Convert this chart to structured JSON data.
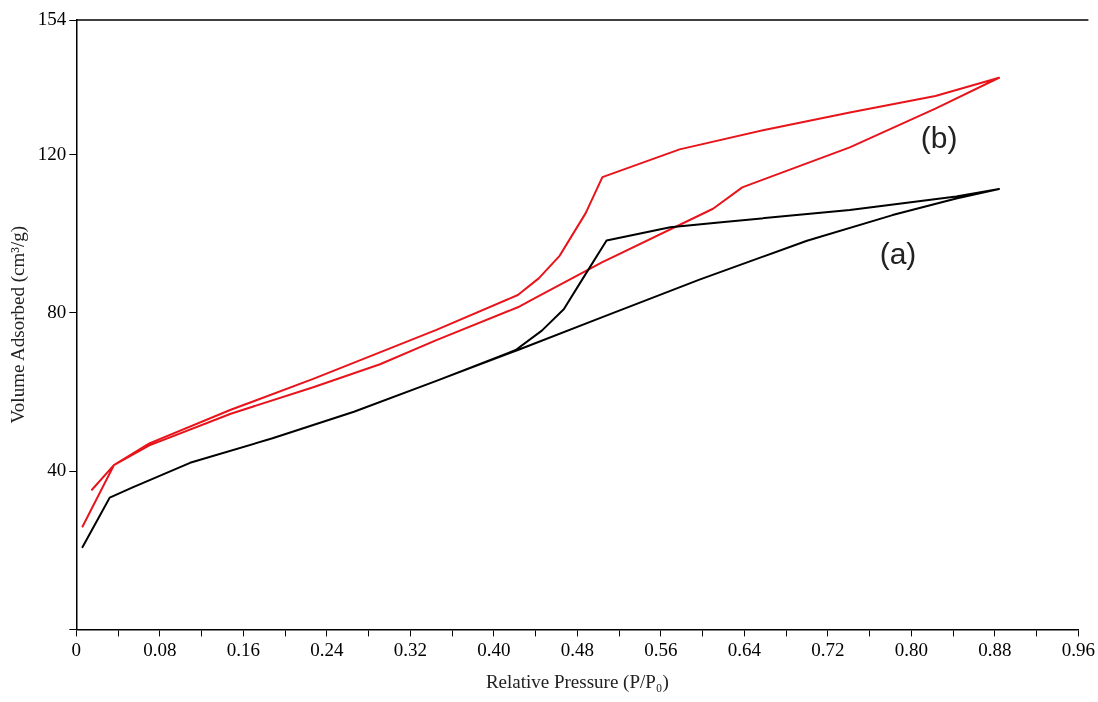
{
  "chart_data": {
    "type": "line",
    "xlabel": "Relative Pressure (P/P₀)",
    "ylabel": "Volume Adsorbed (cm³/g)",
    "xlim": [
      0,
      0.96
    ],
    "ylim": [
      0,
      154
    ],
    "xticks": [
      0,
      {
        "value": 0.04,
        "label": null
      },
      0.08,
      {
        "value": 0.12,
        "label": null
      },
      0.16,
      {
        "value": 0.2,
        "label": null
      },
      0.24,
      {
        "value": 0.28,
        "label": null
      },
      0.32,
      {
        "value": 0.36,
        "label": null
      },
      {
        "value": 0.4,
        "label": "0.40"
      },
      {
        "value": 0.44,
        "label": null
      },
      0.48,
      {
        "value": 0.52,
        "label": null
      },
      0.56,
      {
        "value": 0.6,
        "label": null
      },
      0.64,
      {
        "value": 0.68,
        "label": null
      },
      0.72,
      {
        "value": 0.76,
        "label": null
      },
      {
        "value": 0.8,
        "label": "0.80"
      },
      {
        "value": 0.84,
        "label": null
      },
      0.88,
      {
        "value": 0.92,
        "label": null
      },
      0.96
    ],
    "yticks": [
      {
        "value": 0,
        "label": null
      },
      40,
      80,
      120,
      154
    ],
    "grid": false,
    "legend": false,
    "marker": "none",
    "line_style": "solid",
    "series": [
      {
        "name": "(a)",
        "color": "#000000",
        "x": [
          0.006,
          0.032,
          0.054,
          0.109,
          0.188,
          0.266,
          0.345,
          0.423,
          0.504,
          0.597,
          0.7,
          0.782,
          0.843,
          0.884,
          0.843,
          0.741,
          0.618,
          0.569,
          0.508,
          0.487,
          0.467,
          0.446,
          0.421,
          0.345,
          0.266,
          0.188,
          0.109,
          0.054,
          0.032
        ],
        "values": [
          20.8,
          33.3,
          35.9,
          42.1,
          48.3,
          55,
          62.8,
          70.6,
          78.9,
          88.4,
          98.2,
          104.7,
          108.9,
          111.3,
          109.4,
          106,
          102.9,
          101.6,
          98.3,
          89.4,
          80.9,
          75.5,
          70.6,
          62.8,
          55,
          48.3,
          42.1,
          35.9,
          33.3
        ]
      },
      {
        "name": "(b)",
        "color": "#e8141b",
        "x": [
          0.006,
          0.036,
          0.07,
          0.148,
          0.227,
          0.291,
          0.345,
          0.423,
          0.438,
          0.504,
          0.61,
          0.638,
          0.741,
          0.823,
          0.884,
          0.823,
          0.741,
          0.659,
          0.578,
          0.504,
          0.488,
          0.463,
          0.443,
          0.423,
          0.345,
          0.227,
          0.148,
          0.07,
          0.036,
          0.015
        ],
        "values": [
          26,
          41.5,
          46.5,
          54.5,
          61.2,
          67,
          73.1,
          81.4,
          83.5,
          92.8,
          106.3,
          111.7,
          121.8,
          131.6,
          139.4,
          134.8,
          130.6,
          126.2,
          121.3,
          114.3,
          105.2,
          94.4,
          88.7,
          84.5,
          75.7,
          63.3,
          55.5,
          47,
          41.5,
          35.3
        ]
      }
    ]
  }
}
